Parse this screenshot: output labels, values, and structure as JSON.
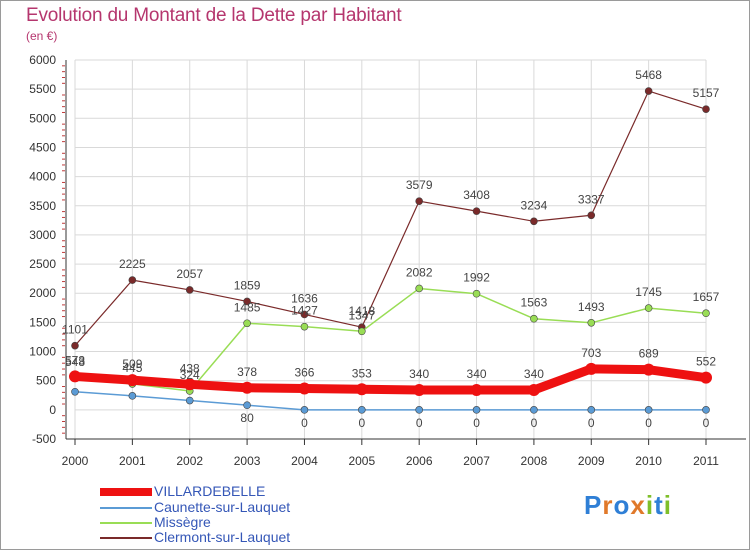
{
  "title": "Evolution du Montant de la Dette par Habitant",
  "unit_label": "(en €)",
  "brand": "Proxiti",
  "colors": {
    "title": "#b5366e",
    "legend_text": "#3557b7",
    "grid": "#d9d9d9",
    "axis": "#333333"
  },
  "chart_data": {
    "type": "line",
    "title": "Evolution du Montant de la Dette par Habitant",
    "ylabel": "(en €)",
    "xlabel": "",
    "x": [
      "2000",
      "2001",
      "2002",
      "2003",
      "2004",
      "2005",
      "2006",
      "2007",
      "2008",
      "2009",
      "2010",
      "2011"
    ],
    "yticks": [
      "-500",
      "0",
      "500",
      "1000",
      "1500",
      "2000",
      "2500",
      "3000",
      "3500",
      "4000",
      "4500",
      "5000",
      "5500",
      "6000"
    ],
    "ylim": [
      -500,
      6000
    ],
    "grid": true,
    "legend_position": "bottom-left",
    "series": [
      {
        "name": "VILLARDEBELLE",
        "color": "#ee1111",
        "values": [
          573,
          509,
          438,
          378,
          366,
          353,
          340,
          340,
          340,
          703,
          689,
          552
        ],
        "labels": [
          "573",
          "509",
          "438",
          "378",
          "366",
          "353",
          "340",
          "340",
          "340",
          "703",
          "689",
          "552"
        ]
      },
      {
        "name": "Caunette-sur-Lauquet",
        "color": "#5b9bd5",
        "values": [
          310,
          240,
          160,
          80,
          0,
          0,
          0,
          0,
          0,
          0,
          0,
          0
        ],
        "labels": [
          "",
          "",
          "",
          "80",
          "0",
          "0",
          "0",
          "0",
          "0",
          "0",
          "0",
          "0"
        ]
      },
      {
        "name": "Missègre",
        "color": "#99dd55",
        "values": [
          548,
          445,
          324,
          1485,
          1427,
          1347,
          2082,
          1992,
          1563,
          1493,
          1745,
          1657
        ],
        "labels": [
          "548",
          "445",
          "324",
          "1485",
          "1427",
          "1347",
          "2082",
          "1992",
          "1563",
          "1493",
          "1745",
          "1657"
        ]
      },
      {
        "name": "Clermont-sur-Lauquet",
        "color": "#7a2a2a",
        "values": [
          1101,
          2225,
          2057,
          1859,
          1636,
          1418,
          3579,
          3408,
          3234,
          3337,
          5468,
          5157
        ],
        "labels": [
          "1101",
          "2225",
          "2057",
          "1859",
          "1636",
          "1418",
          "3579",
          "3408",
          "3234",
          "3337",
          "5468",
          "5157"
        ]
      }
    ]
  }
}
